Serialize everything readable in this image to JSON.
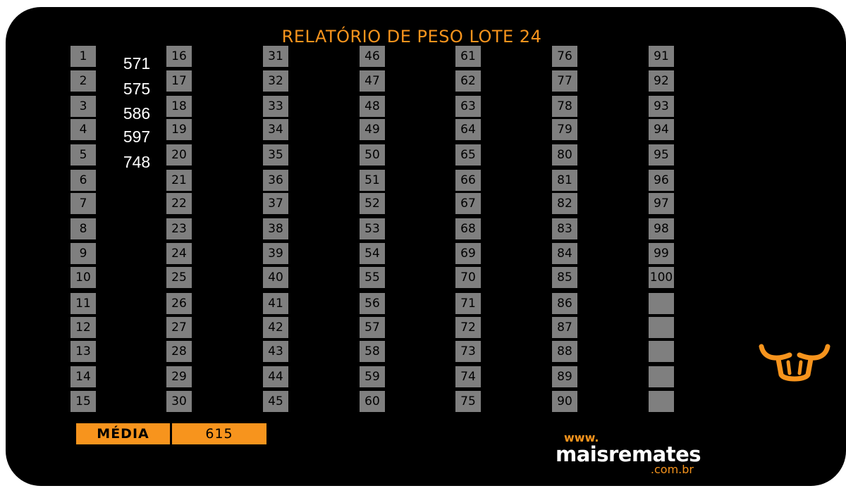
{
  "title": "RELATÓRIO DE PESO LOTE 24",
  "columns": [
    [
      "1",
      "2",
      "3",
      "4",
      "5",
      "6",
      "7",
      "8",
      "9",
      "10",
      "11",
      "12",
      "13",
      "14",
      "15"
    ],
    [
      "16",
      "17",
      "18",
      "19",
      "20",
      "21",
      "22",
      "23",
      "24",
      "25",
      "26",
      "27",
      "28",
      "29",
      "30"
    ],
    [
      "31",
      "32",
      "33",
      "34",
      "35",
      "36",
      "37",
      "38",
      "39",
      "40",
      "41",
      "42",
      "43",
      "44",
      "45"
    ],
    [
      "46",
      "47",
      "48",
      "49",
      "50",
      "51",
      "52",
      "53",
      "54",
      "55",
      "56",
      "57",
      "58",
      "59",
      "60"
    ],
    [
      "61",
      "62",
      "63",
      "64",
      "65",
      "66",
      "67",
      "68",
      "69",
      "70",
      "71",
      "72",
      "73",
      "74",
      "75"
    ],
    [
      "76",
      "77",
      "78",
      "79",
      "80",
      "81",
      "82",
      "83",
      "84",
      "85",
      "86",
      "87",
      "88",
      "89",
      "90"
    ],
    [
      "91",
      "92",
      "93",
      "94",
      "95",
      "96",
      "97",
      "98",
      "99",
      "100",
      "",
      "",
      "",
      "",
      ""
    ]
  ],
  "weights": [
    "571",
    "575",
    "586",
    "597",
    "748"
  ],
  "media": {
    "label": "MÉDIA",
    "value": "615"
  },
  "brand": {
    "www": "www.",
    "name": "maisremates",
    "tld": ".com.br"
  },
  "colors": {
    "accent": "#f7941d",
    "cell": "#7f7f7f",
    "background": "#000000"
  },
  "icons": {
    "logo": "bull-head-icon"
  }
}
